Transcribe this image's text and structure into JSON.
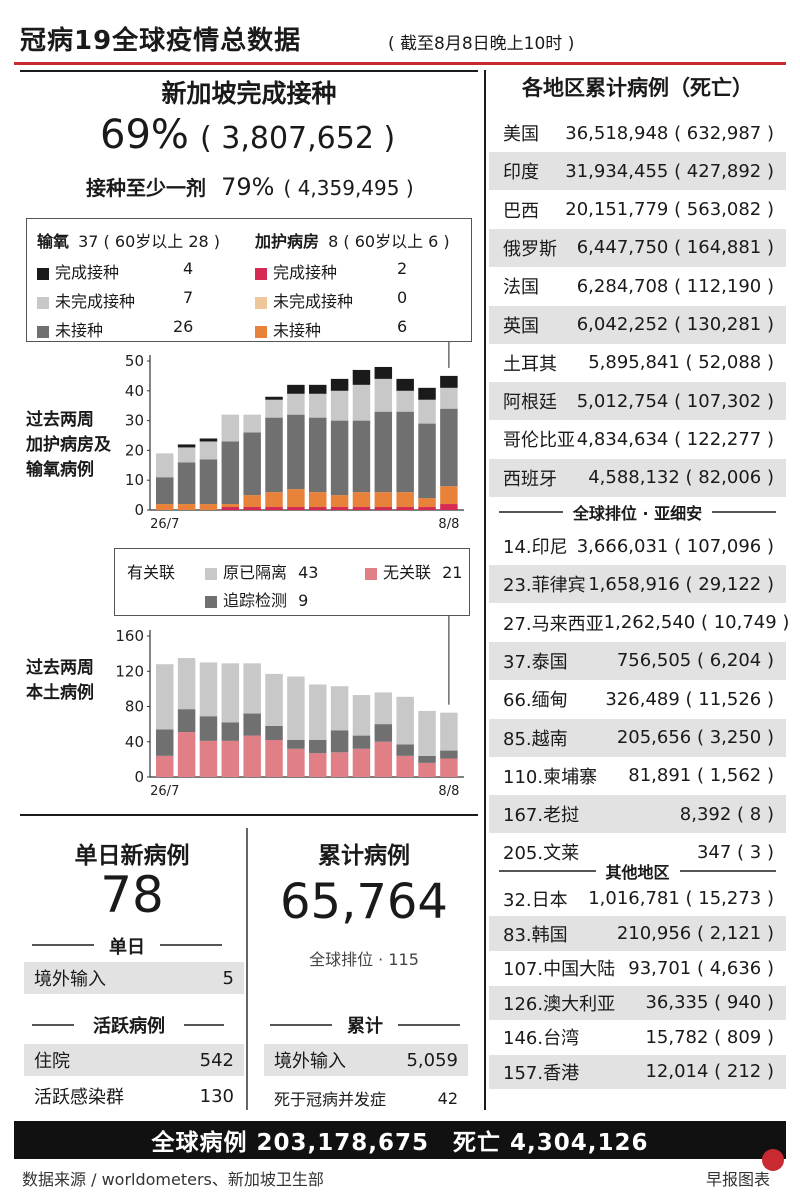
{
  "header": {
    "title": "冠病19全球疫情总数据",
    "as_of": "( 截至8月8日晚上10时 )"
  },
  "vaccination": {
    "title": "新加坡完成接种",
    "complete_pct": "69%",
    "complete_count": "( 3,807,652 )",
    "one_dose_label": "接种至少一剂",
    "one_dose_pct": "79%",
    "one_dose_count": "( 4,359,495 )"
  },
  "hospital_legend": {
    "oxygen_title": "输氧",
    "oxygen_total": "37 ( 60岁以上 28 )",
    "icu_title": "加护病房",
    "icu_total": "8 ( 60岁以上 6 )",
    "oxygen_items": [
      {
        "label": "完成接种",
        "value": "4"
      },
      {
        "label": "未完成接种",
        "value": "7"
      },
      {
        "label": "未接种",
        "value": "26"
      }
    ],
    "icu_items": [
      {
        "label": "完成接种",
        "value": "2"
      },
      {
        "label": "未完成接种",
        "value": "0"
      },
      {
        "label": "未接种",
        "value": "6"
      }
    ]
  },
  "colors": {
    "o_full": "#1a1a1a",
    "o_partial": "#c8c8c8",
    "o_none": "#707070",
    "i_full": "#d42a53",
    "i_partial": "#f0c79a",
    "i_none": "#e8823b",
    "linked_quarantine": "#c8c8c8",
    "linked_tracing": "#707070",
    "unlinked": "#e07f86",
    "accent_red": "#c92a32"
  },
  "chart_data": [
    {
      "type": "bar",
      "title": "过去两周加护病房及输氧病例",
      "x_start_label": "26/7",
      "x_end_label": "8/8",
      "ylim": [
        0,
        50
      ],
      "yticks": [
        "0",
        "10",
        "20",
        "30",
        "40",
        "50"
      ],
      "categories": [
        "26/7",
        "27/7",
        "28/7",
        "29/7",
        "30/7",
        "31/7",
        "1/8",
        "2/8",
        "3/8",
        "4/8",
        "5/8",
        "6/8",
        "7/8",
        "8/8"
      ],
      "series": [
        {
          "name": "加护病房 完成接种",
          "values": [
            0,
            0,
            0,
            1,
            1,
            1,
            1,
            1,
            1,
            1,
            1,
            1,
            1,
            2
          ]
        },
        {
          "name": "加护病房 未完成接种",
          "values": [
            0,
            0,
            0,
            0,
            0,
            0,
            0,
            0,
            0,
            0,
            0,
            0,
            0,
            0
          ]
        },
        {
          "name": "加护病房 未接种",
          "values": [
            2,
            2,
            2,
            1,
            4,
            5,
            6,
            5,
            4,
            5,
            5,
            5,
            3,
            6
          ]
        },
        {
          "name": "输氧 未接种",
          "values": [
            9,
            14,
            15,
            21,
            21,
            25,
            25,
            25,
            25,
            24,
            27,
            27,
            25,
            26
          ]
        },
        {
          "name": "输氧 未完成接种",
          "values": [
            8,
            5,
            6,
            9,
            6,
            6,
            7,
            8,
            10,
            12,
            11,
            7,
            8,
            7
          ]
        },
        {
          "name": "输氧 完成接种",
          "values": [
            0,
            1,
            1,
            0,
            0,
            1,
            3,
            3,
            4,
            5,
            4,
            4,
            4,
            4
          ]
        }
      ]
    },
    {
      "type": "bar",
      "title": "过去两周本土病例",
      "x_start_label": "26/7",
      "x_end_label": "8/8",
      "ylim": [
        0,
        160
      ],
      "yticks": [
        "0",
        "40",
        "80",
        "120",
        "160"
      ],
      "legend_title": "有关联",
      "legend": [
        {
          "label": "原已隔离",
          "value": "43"
        },
        {
          "label": "无关联",
          "value": "21"
        },
        {
          "label": "追踪检测",
          "value": "9"
        }
      ],
      "categories": [
        "26/7",
        "27/7",
        "28/7",
        "29/7",
        "30/7",
        "31/7",
        "1/8",
        "2/8",
        "3/8",
        "4/8",
        "5/8",
        "6/8",
        "7/8",
        "8/8"
      ],
      "series": [
        {
          "name": "无关联",
          "values": [
            24,
            51,
            41,
            41,
            47,
            42,
            32,
            27,
            28,
            32,
            40,
            24,
            16,
            21
          ]
        },
        {
          "name": "追踪检测",
          "values": [
            30,
            26,
            28,
            21,
            25,
            16,
            10,
            15,
            25,
            15,
            20,
            13,
            8,
            9
          ]
        },
        {
          "name": "原已隔离",
          "values": [
            74,
            58,
            61,
            67,
            57,
            59,
            72,
            63,
            50,
            46,
            36,
            54,
            51,
            43
          ]
        }
      ]
    }
  ],
  "chart_titles": {
    "hospital": [
      "过去两周",
      "加护病房及",
      "输氧病例"
    ],
    "local": [
      "过去两周",
      "本土病例"
    ]
  },
  "daily": {
    "title": "单日新病例",
    "count": "78",
    "sub_label": "单日",
    "imported_label": "境外输入",
    "imported_value": "5",
    "active_label": "活跃病例",
    "hospitalized_label": "住院",
    "hospitalized_value": "542",
    "clusters_label": "活跃感染群",
    "clusters_value": "130"
  },
  "cumulative": {
    "title": "累计病例",
    "count": "65,764",
    "rank": "全球排位 · 115",
    "sub_label": "累计",
    "imported_label": "境外输入",
    "imported_value": "5,059",
    "deaths_label": "死于冠病并发症",
    "deaths_value": "42"
  },
  "regions": {
    "title": "各地区累计病例（死亡）",
    "top": [
      {
        "name": "美国",
        "value": "36,518,948 ( 632,987 )"
      },
      {
        "name": "印度",
        "value": "31,934,455 ( 427,892 )"
      },
      {
        "name": "巴西",
        "value": "20,151,779 ( 563,082 )"
      },
      {
        "name": "俄罗斯",
        "value": "6,447,750 ( 164,881 )"
      },
      {
        "name": "法国",
        "value": "6,284,708 ( 112,190 )"
      },
      {
        "name": "英国",
        "value": "6,042,252 ( 130,281 )"
      },
      {
        "name": "土耳其",
        "value": "5,895,841 ( 52,088 )"
      },
      {
        "name": "阿根廷",
        "value": "5,012,754 ( 107,302 )"
      },
      {
        "name": "哥伦比亚",
        "value": "4,834,634 ( 122,277 )"
      },
      {
        "name": "西班牙",
        "value": "4,588,132 ( 82,006 )"
      }
    ],
    "asean_label": "全球排位 · 亚细安",
    "asean": [
      {
        "name": "14.印尼",
        "value": "3,666,031 ( 107,096 )"
      },
      {
        "name": "23.菲律宾",
        "value": "1,658,916 ( 29,122 )"
      },
      {
        "name": "27.马来西亚",
        "value": "1,262,540 ( 10,749 )"
      },
      {
        "name": "37.泰国",
        "value": "756,505 ( 6,204 )"
      },
      {
        "name": "66.缅甸",
        "value": "326,489 ( 11,526 )"
      },
      {
        "name": "85.越南",
        "value": "205,656 ( 3,250 )"
      },
      {
        "name": "110.柬埔寨",
        "value": "81,891 ( 1,562 )"
      },
      {
        "name": "167.老挝",
        "value": "8,392 ( 8 )"
      },
      {
        "name": "205.文莱",
        "value": "347 ( 3 )"
      }
    ],
    "other_label": "其他地区",
    "other": [
      {
        "name": "32.日本",
        "value": "1,016,781 ( 15,273 )"
      },
      {
        "name": "83.韩国",
        "value": "210,956 ( 2,121 )"
      },
      {
        "name": "107.中国大陆",
        "value": "93,701 ( 4,636 )"
      },
      {
        "name": "126.澳大利亚",
        "value": "36,335 ( 940 )"
      },
      {
        "name": "146.台湾",
        "value": "15,782 ( 809 )"
      },
      {
        "name": "157.香港",
        "value": "12,014 ( 212 )"
      }
    ]
  },
  "footer": {
    "global": "全球病例 203,178,675　死亡 4,304,126",
    "source": "数据来源 / worldometers、新加坡卫生部",
    "brand": "早报图表"
  }
}
